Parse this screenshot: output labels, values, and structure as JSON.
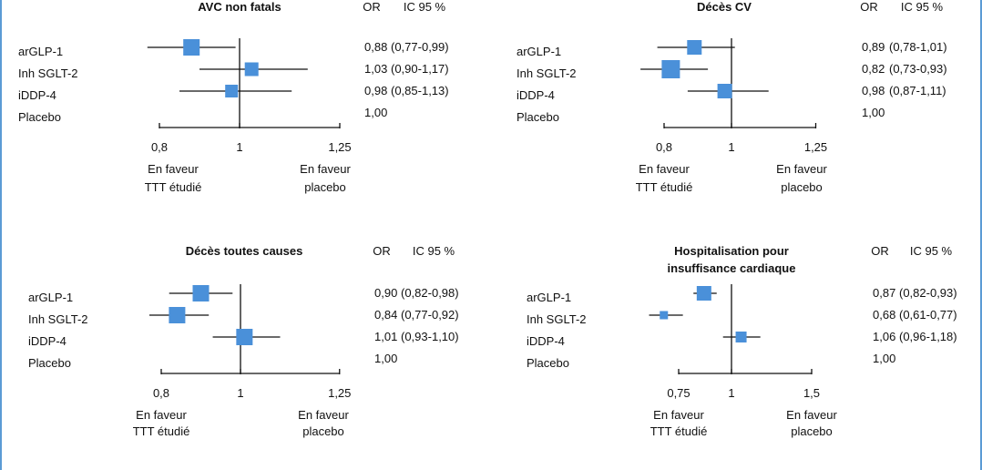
{
  "chart_data": [
    {
      "type": "forest",
      "title": [
        "AVC non fatals"
      ],
      "or_header": "OR",
      "ci_header": "IC 95 %",
      "x_ticks": [
        "0,8",
        "1",
        "1,25"
      ],
      "favor_left": [
        "En faveur",
        "TTT étudié"
      ],
      "favor_right": [
        "En faveur",
        "placebo"
      ],
      "rows": [
        {
          "label": "arGLP-1",
          "or": 0.88,
          "lo": 0.77,
          "hi": 0.99,
          "or_text": "0,88",
          "ci_text": "(0,77-0,99)"
        },
        {
          "label": "Inh SGLT-2",
          "or": 1.03,
          "lo": 0.9,
          "hi": 1.17,
          "or_text": "1,03",
          "ci_text": "(0,90-1,17)"
        },
        {
          "label": "iDDP-4",
          "or": 0.98,
          "lo": 0.85,
          "hi": 1.13,
          "or_text": "0,98",
          "ci_text": "(0,85-1,13)"
        },
        {
          "label": "Placebo",
          "or": null,
          "lo": null,
          "hi": null,
          "or_text": "1,00",
          "ci_text": ""
        }
      ]
    },
    {
      "type": "forest",
      "title": [
        "Décès CV"
      ],
      "or_header": "OR",
      "ci_header": "IC 95 %",
      "x_ticks": [
        "0,8",
        "1",
        "1,25"
      ],
      "favor_left": [
        "En faveur",
        "TTT étudié"
      ],
      "favor_right": [
        "En faveur",
        "placebo"
      ],
      "rows": [
        {
          "label": "arGLP-1",
          "or": 0.89,
          "lo": 0.78,
          "hi": 1.01,
          "or_text": "0,89",
          "ci_text": "(0,78-1,01)"
        },
        {
          "label": "Inh SGLT-2",
          "or": 0.82,
          "lo": 0.73,
          "hi": 0.93,
          "or_text": "0,82",
          "ci_text": "(0,73-0,93)"
        },
        {
          "label": "iDDP-4",
          "or": 0.98,
          "lo": 0.87,
          "hi": 1.11,
          "or_text": "0,98",
          "ci_text": "(0,87-1,11)"
        },
        {
          "label": "Placebo",
          "or": null,
          "lo": null,
          "hi": null,
          "or_text": "1,00",
          "ci_text": ""
        }
      ]
    },
    {
      "type": "forest",
      "title": [
        "Décès toutes causes"
      ],
      "or_header": "OR",
      "ci_header": "IC 95 %",
      "x_ticks": [
        "0,8",
        "1",
        "1,25"
      ],
      "favor_left": [
        "En faveur",
        "TTT étudié"
      ],
      "favor_right": [
        "En faveur",
        "placebo"
      ],
      "rows": [
        {
          "label": "arGLP-1",
          "or": 0.9,
          "lo": 0.82,
          "hi": 0.98,
          "or_text": "0,90",
          "ci_text": "(0,82-0,98)"
        },
        {
          "label": "Inh SGLT-2",
          "or": 0.84,
          "lo": 0.77,
          "hi": 0.92,
          "or_text": "0,84",
          "ci_text": "(0,77-0,92)"
        },
        {
          "label": "iDDP-4",
          "or": 1.01,
          "lo": 0.93,
          "hi": 1.1,
          "or_text": "1,01",
          "ci_text": "(0,93-1,10)"
        },
        {
          "label": "Placebo",
          "or": null,
          "lo": null,
          "hi": null,
          "or_text": "1,00",
          "ci_text": ""
        }
      ]
    },
    {
      "type": "forest",
      "title": [
        "Hospitalisation pour",
        "insuffisance cardiaque"
      ],
      "or_header": "OR",
      "ci_header": "IC 95 %",
      "x_ticks": [
        "0,75",
        "1",
        "1,5"
      ],
      "favor_left": [
        "En faveur",
        "TTT étudié"
      ],
      "favor_right": [
        "En faveur",
        "placebo"
      ],
      "rows": [
        {
          "label": "arGLP-1",
          "or": 0.87,
          "lo": 0.82,
          "hi": 0.93,
          "or_text": "0,87",
          "ci_text": "(0,82-0,93)"
        },
        {
          "label": "Inh SGLT-2",
          "or": 0.68,
          "lo": 0.61,
          "hi": 0.77,
          "or_text": "0,68",
          "ci_text": "(0,61-0,77)"
        },
        {
          "label": "iDDP-4",
          "or": 1.06,
          "lo": 0.96,
          "hi": 1.18,
          "or_text": "1,06",
          "ci_text": "(0,96-1,18)"
        },
        {
          "label": "Placebo",
          "or": null,
          "lo": null,
          "hi": null,
          "or_text": "1,00",
          "ci_text": ""
        }
      ]
    }
  ],
  "colors": {
    "marker": "#4a90d9",
    "line": "#111111",
    "border": "#5b9bd5"
  }
}
